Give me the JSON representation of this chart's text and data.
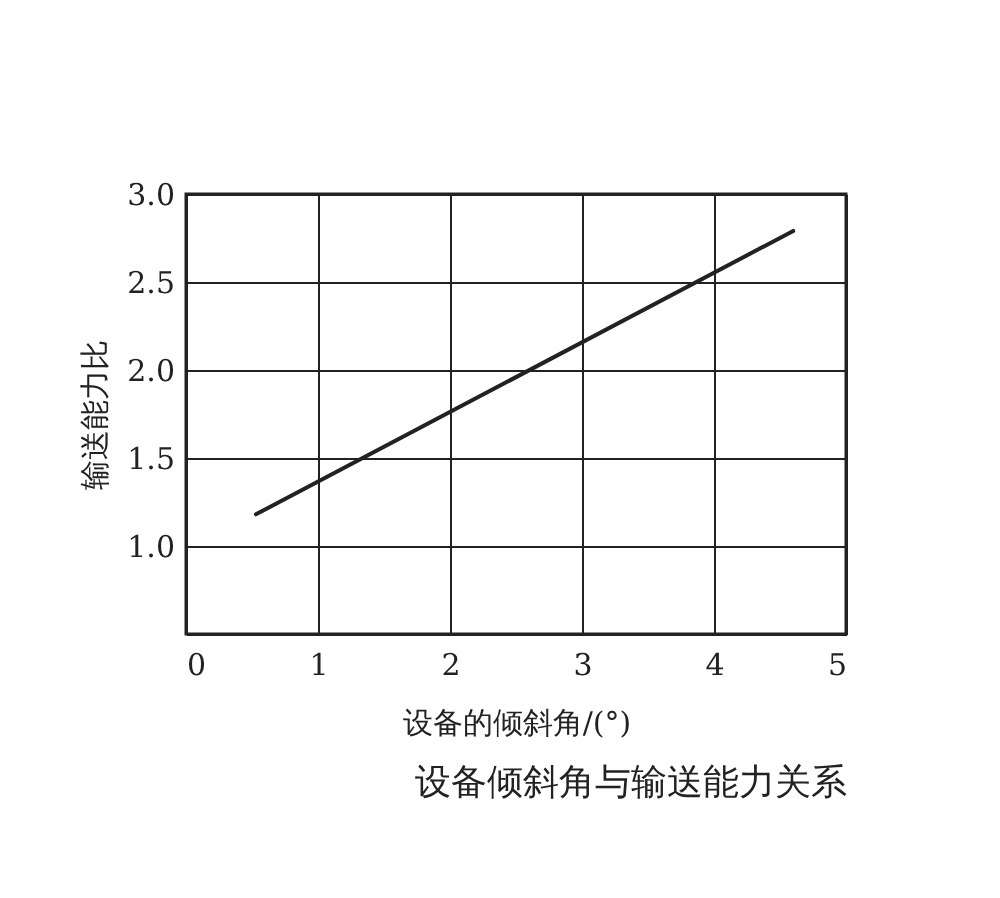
{
  "chart_data": {
    "type": "line",
    "title": "设备倾斜角与输送能力关系",
    "xlabel": "设备的倾斜角/(°)",
    "ylabel": "输送能力比",
    "x": [
      0.53,
      4.6
    ],
    "series": [
      {
        "color": "#222222",
        "values": [
          1.18,
          2.79
        ]
      }
    ],
    "xlim": [
      0,
      5
    ],
    "xticks": [
      0,
      1,
      2,
      3,
      4,
      5
    ],
    "ylim": [
      0.5,
      3.0
    ],
    "yticks": [
      {
        "value": 1,
        "label": "1.0"
      },
      {
        "value": 1.5,
        "label": "1.5"
      },
      {
        "value": 2,
        "label": "2.0"
      },
      {
        "value": 2.5,
        "label": "2.5"
      },
      {
        "value": 3,
        "label": "3.0"
      }
    ],
    "grid": true,
    "marker": "none",
    "line_style": "solid"
  }
}
